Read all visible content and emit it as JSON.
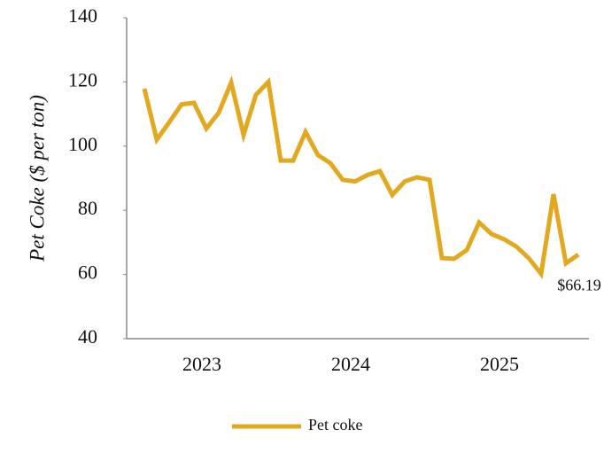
{
  "chart_data": {
    "type": "line",
    "y_label": "Pet Coke ($ per ton)",
    "categories": [
      null,
      null,
      null,
      null,
      null,
      "2023",
      null,
      null,
      null,
      null,
      null,
      null,
      null,
      null,
      null,
      null,
      null,
      "2024",
      null,
      null,
      null,
      null,
      null,
      null,
      null,
      null,
      null,
      null,
      null,
      "2025",
      null,
      null,
      null,
      null,
      null,
      null
    ],
    "series": [
      {
        "name": "Pet coke",
        "color": "#e2a820",
        "values": [
          117.9,
          102,
          107.4,
          113,
          113.5,
          105.5,
          110.4,
          119.8,
          103.5,
          116,
          120,
          95.5,
          95.5,
          104.4,
          97.2,
          94.7,
          89.5,
          89,
          91,
          92.2,
          84.8,
          89,
          90.3,
          89.5,
          65.1,
          64.9,
          67.6,
          76.2,
          72.6,
          71,
          68.7,
          65.1,
          60.2,
          85,
          63.5,
          66.19
        ],
        "value_labels": [
          null,
          null,
          null,
          null,
          null,
          null,
          null,
          null,
          null,
          null,
          null,
          null,
          null,
          null,
          null,
          null,
          null,
          null,
          null,
          null,
          null,
          null,
          null,
          null,
          null,
          null,
          null,
          null,
          null,
          null,
          null,
          null,
          null,
          null,
          null,
          "$66.19"
        ]
      }
    ],
    "ylim": [
      40,
      140
    ],
    "yticks": [
      40,
      60,
      80,
      100,
      120,
      140
    ],
    "legend": "bottom"
  }
}
